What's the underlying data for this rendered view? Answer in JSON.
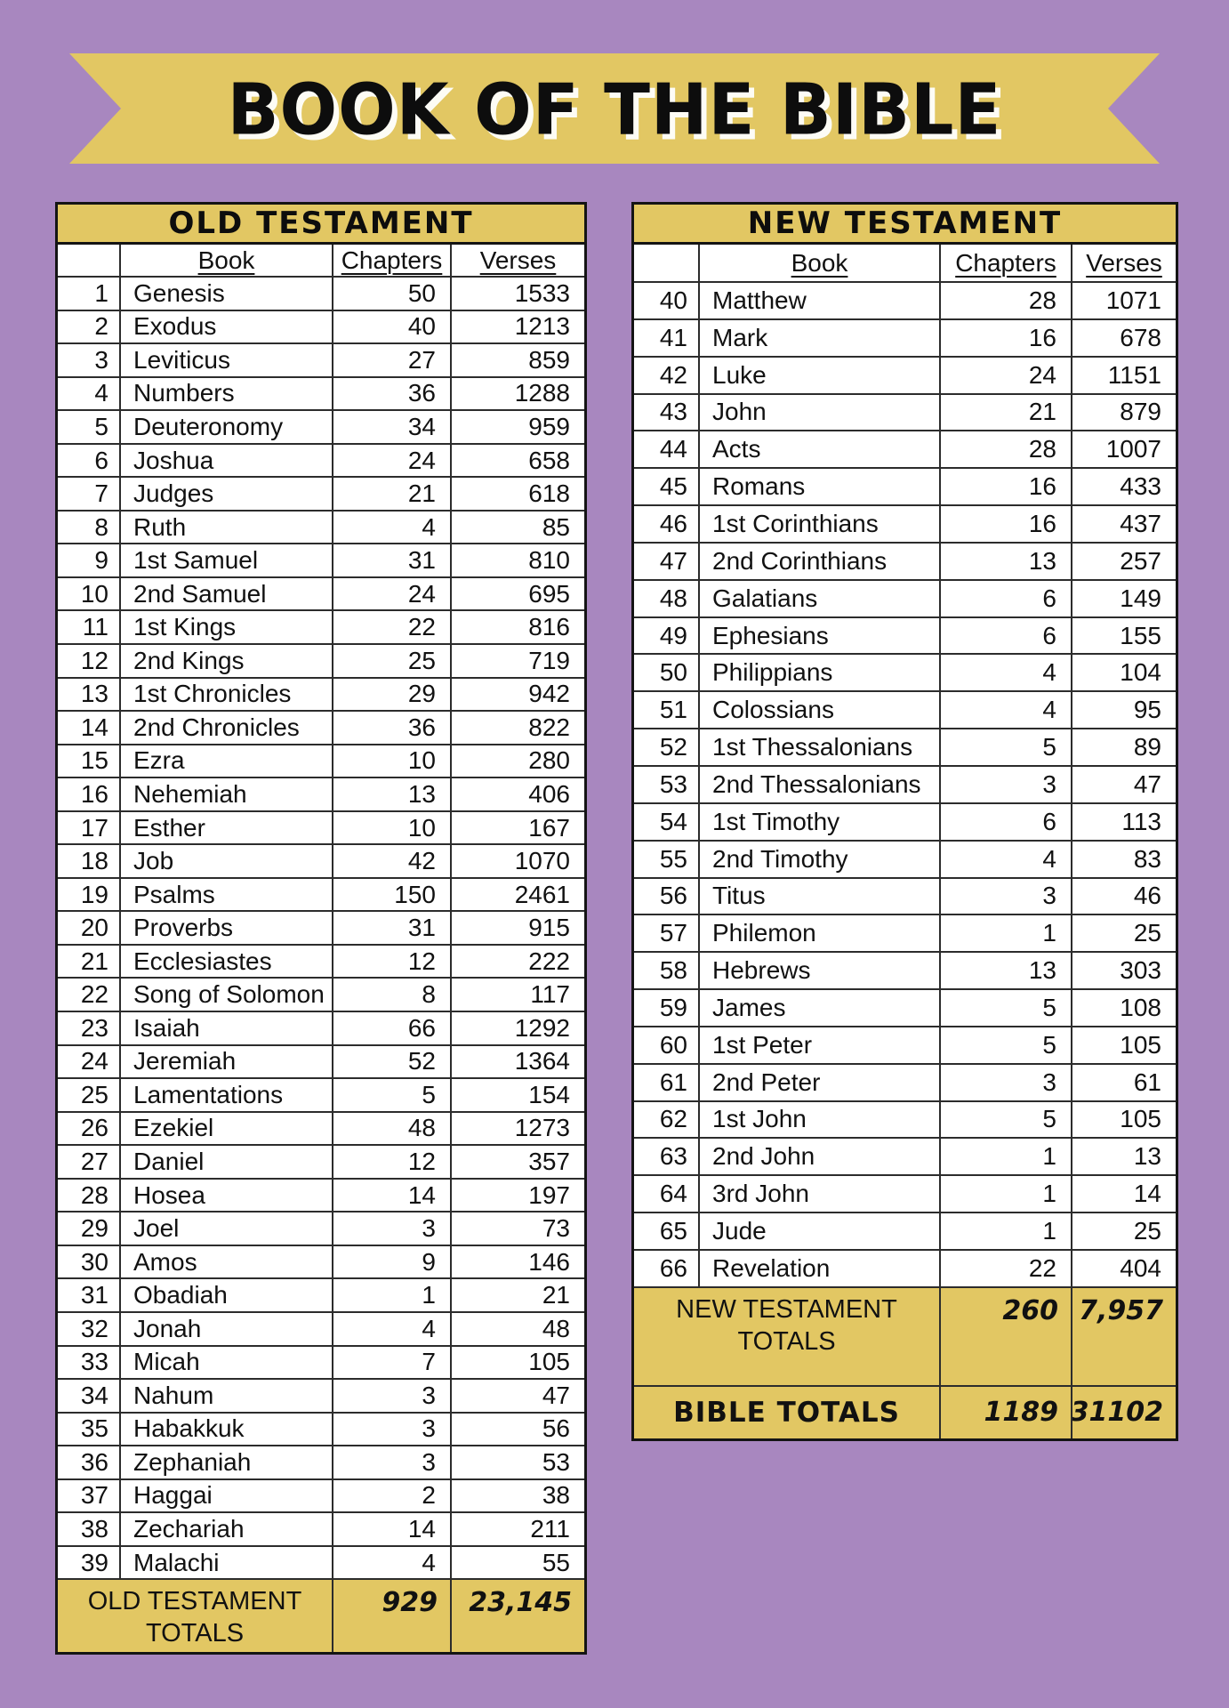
{
  "title": "BOOK OF THE BIBLE",
  "colors": {
    "background": "#a887bf",
    "gold": "#e2c763",
    "text": "#111111"
  },
  "columns": {
    "book": "Book",
    "chapters": "Chapters",
    "verses": "Verses"
  },
  "old_testament": {
    "header": "OLD TESTAMENT",
    "rows": [
      {
        "num": 1,
        "book": "Genesis",
        "chapters": 50,
        "verses": 1533
      },
      {
        "num": 2,
        "book": "Exodus",
        "chapters": 40,
        "verses": 1213
      },
      {
        "num": 3,
        "book": "Leviticus",
        "chapters": 27,
        "verses": 859
      },
      {
        "num": 4,
        "book": "Numbers",
        "chapters": 36,
        "verses": 1288
      },
      {
        "num": 5,
        "book": "Deuteronomy",
        "chapters": 34,
        "verses": 959
      },
      {
        "num": 6,
        "book": "Joshua",
        "chapters": 24,
        "verses": 658
      },
      {
        "num": 7,
        "book": "Judges",
        "chapters": 21,
        "verses": 618
      },
      {
        "num": 8,
        "book": "Ruth",
        "chapters": 4,
        "verses": 85
      },
      {
        "num": 9,
        "book": "1st Samuel",
        "chapters": 31,
        "verses": 810
      },
      {
        "num": 10,
        "book": "2nd Samuel",
        "chapters": 24,
        "verses": 695
      },
      {
        "num": 11,
        "book": "1st Kings",
        "chapters": 22,
        "verses": 816
      },
      {
        "num": 12,
        "book": "2nd Kings",
        "chapters": 25,
        "verses": 719
      },
      {
        "num": 13,
        "book": "1st Chronicles",
        "chapters": 29,
        "verses": 942
      },
      {
        "num": 14,
        "book": "2nd Chronicles",
        "chapters": 36,
        "verses": 822
      },
      {
        "num": 15,
        "book": "Ezra",
        "chapters": 10,
        "verses": 280
      },
      {
        "num": 16,
        "book": "Nehemiah",
        "chapters": 13,
        "verses": 406
      },
      {
        "num": 17,
        "book": "Esther",
        "chapters": 10,
        "verses": 167
      },
      {
        "num": 18,
        "book": "Job",
        "chapters": 42,
        "verses": 1070
      },
      {
        "num": 19,
        "book": "Psalms",
        "chapters": 150,
        "verses": 2461
      },
      {
        "num": 20,
        "book": "Proverbs",
        "chapters": 31,
        "verses": 915
      },
      {
        "num": 21,
        "book": "Ecclesiastes",
        "chapters": 12,
        "verses": 222
      },
      {
        "num": 22,
        "book": "Song of Solomon",
        "chapters": 8,
        "verses": 117
      },
      {
        "num": 23,
        "book": "Isaiah",
        "chapters": 66,
        "verses": 1292
      },
      {
        "num": 24,
        "book": "Jeremiah",
        "chapters": 52,
        "verses": 1364
      },
      {
        "num": 25,
        "book": "Lamentations",
        "chapters": 5,
        "verses": 154
      },
      {
        "num": 26,
        "book": "Ezekiel",
        "chapters": 48,
        "verses": 1273
      },
      {
        "num": 27,
        "book": "Daniel",
        "chapters": 12,
        "verses": 357
      },
      {
        "num": 28,
        "book": "Hosea",
        "chapters": 14,
        "verses": 197
      },
      {
        "num": 29,
        "book": "Joel",
        "chapters": 3,
        "verses": 73
      },
      {
        "num": 30,
        "book": "Amos",
        "chapters": 9,
        "verses": 146
      },
      {
        "num": 31,
        "book": "Obadiah",
        "chapters": 1,
        "verses": 21
      },
      {
        "num": 32,
        "book": "Jonah",
        "chapters": 4,
        "verses": 48
      },
      {
        "num": 33,
        "book": "Micah",
        "chapters": 7,
        "verses": 105
      },
      {
        "num": 34,
        "book": "Nahum",
        "chapters": 3,
        "verses": 47
      },
      {
        "num": 35,
        "book": "Habakkuk",
        "chapters": 3,
        "verses": 56
      },
      {
        "num": 36,
        "book": "Zephaniah",
        "chapters": 3,
        "verses": 53
      },
      {
        "num": 37,
        "book": "Haggai",
        "chapters": 2,
        "verses": 38
      },
      {
        "num": 38,
        "book": "Zechariah",
        "chapters": 14,
        "verses": 211
      },
      {
        "num": 39,
        "book": "Malachi",
        "chapters": 4,
        "verses": 55
      }
    ],
    "totals": {
      "label": "OLD TESTAMENT TOTALS",
      "chapters": "929",
      "verses": "23,145"
    }
  },
  "new_testament": {
    "header": "NEW TESTAMENT",
    "rows": [
      {
        "num": 40,
        "book": "Matthew",
        "chapters": 28,
        "verses": 1071
      },
      {
        "num": 41,
        "book": "Mark",
        "chapters": 16,
        "verses": 678
      },
      {
        "num": 42,
        "book": "Luke",
        "chapters": 24,
        "verses": 1151
      },
      {
        "num": 43,
        "book": "John",
        "chapters": 21,
        "verses": 879
      },
      {
        "num": 44,
        "book": "Acts",
        "chapters": 28,
        "verses": 1007
      },
      {
        "num": 45,
        "book": "Romans",
        "chapters": 16,
        "verses": 433
      },
      {
        "num": 46,
        "book": "1st Corinthians",
        "chapters": 16,
        "verses": 437
      },
      {
        "num": 47,
        "book": "2nd Corinthians",
        "chapters": 13,
        "verses": 257
      },
      {
        "num": 48,
        "book": "Galatians",
        "chapters": 6,
        "verses": 149
      },
      {
        "num": 49,
        "book": "Ephesians",
        "chapters": 6,
        "verses": 155
      },
      {
        "num": 50,
        "book": "Philippians",
        "chapters": 4,
        "verses": 104
      },
      {
        "num": 51,
        "book": "Colossians",
        "chapters": 4,
        "verses": 95
      },
      {
        "num": 52,
        "book": "1st Thessalonians",
        "chapters": 5,
        "verses": 89
      },
      {
        "num": 53,
        "book": "2nd Thessalonians",
        "chapters": 3,
        "verses": 47
      },
      {
        "num": 54,
        "book": "1st Timothy",
        "chapters": 6,
        "verses": 113
      },
      {
        "num": 55,
        "book": "2nd Timothy",
        "chapters": 4,
        "verses": 83
      },
      {
        "num": 56,
        "book": "Titus",
        "chapters": 3,
        "verses": 46
      },
      {
        "num": 57,
        "book": "Philemon",
        "chapters": 1,
        "verses": 25
      },
      {
        "num": 58,
        "book": "Hebrews",
        "chapters": 13,
        "verses": 303
      },
      {
        "num": 59,
        "book": "James",
        "chapters": 5,
        "verses": 108
      },
      {
        "num": 60,
        "book": "1st Peter",
        "chapters": 5,
        "verses": 105
      },
      {
        "num": 61,
        "book": "2nd Peter",
        "chapters": 3,
        "verses": 61
      },
      {
        "num": 62,
        "book": "1st John",
        "chapters": 5,
        "verses": 105
      },
      {
        "num": 63,
        "book": "2nd John",
        "chapters": 1,
        "verses": 13
      },
      {
        "num": 64,
        "book": "3rd John",
        "chapters": 1,
        "verses": 14
      },
      {
        "num": 65,
        "book": "Jude",
        "chapters": 1,
        "verses": 25
      },
      {
        "num": 66,
        "book": "Revelation",
        "chapters": 22,
        "verses": 404
      }
    ],
    "totals": {
      "label": "NEW TESTAMENT TOTALS",
      "chapters": "260",
      "verses": "7,957"
    },
    "bible_totals": {
      "label": "BIBLE TOTALS",
      "chapters": "1189",
      "verses": "31102"
    }
  }
}
